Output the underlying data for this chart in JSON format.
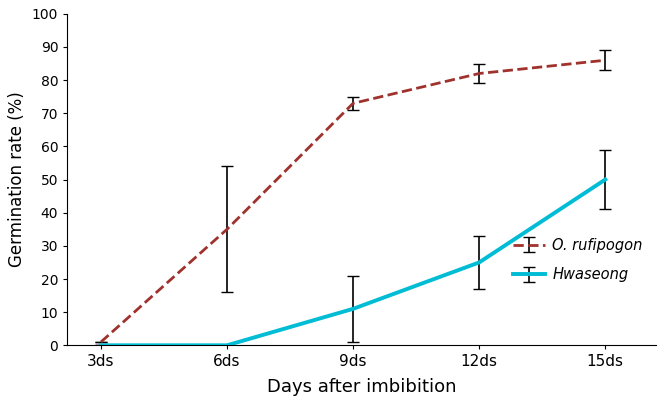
{
  "x": [
    3,
    6,
    9,
    12,
    15
  ],
  "x_labels": [
    "3ds",
    "6ds",
    "9ds",
    "12ds",
    "15ds"
  ],
  "rufipogon_y": [
    1,
    35,
    73,
    82,
    86
  ],
  "rufipogon_err": [
    0,
    19,
    2,
    3,
    3
  ],
  "hwaseong_y": [
    0,
    0,
    11,
    25,
    50
  ],
  "hwaseong_err": [
    0,
    0,
    10,
    8,
    9
  ],
  "rufipogon_color": "#a0322d",
  "hwaseong_color": "#00bcd4",
  "ylabel": "Germination rate (%)",
  "xlabel": "Days after imbibition",
  "ylim": [
    0,
    100
  ],
  "yticks": [
    0,
    10,
    20,
    30,
    40,
    50,
    60,
    70,
    80,
    90,
    100
  ],
  "legend_rufipogon": "O. rufipogon",
  "legend_hwaseong": "Hwaseong",
  "bg_color": "#ffffff"
}
